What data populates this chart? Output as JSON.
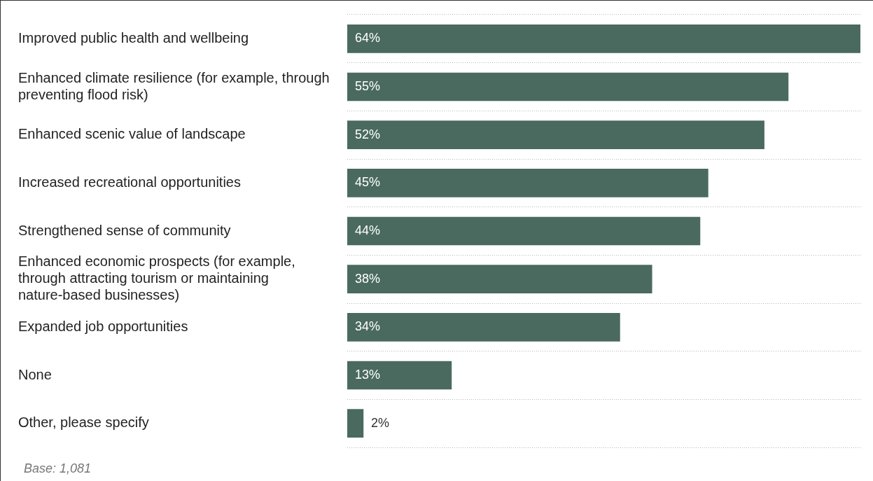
{
  "chart_data": {
    "type": "bar",
    "orientation": "horizontal",
    "categories": [
      "Improved public health and wellbeing",
      "Enhanced climate resilience (for example, through preventing flood risk)",
      "Enhanced scenic value of landscape",
      "Increased recreational opportunities",
      "Strengthened sense of community",
      "Enhanced economic prospects (for example, through attracting tourism or maintaining nature-based businesses)",
      "Expanded job opportunities",
      "None",
      "Other, please specify"
    ],
    "values": [
      64,
      55,
      52,
      45,
      44,
      38,
      34,
      13,
      2
    ],
    "color": "#4a6a5f",
    "relative": false,
    "data_labels": true,
    "grid": "y",
    "legend": false,
    "value_labels": [
      "64%",
      "55%",
      "52%",
      "45%",
      "44%",
      "38%",
      "34%",
      "13%",
      "2%"
    ],
    "annotations": [
      "Base: 1,081"
    ]
  }
}
